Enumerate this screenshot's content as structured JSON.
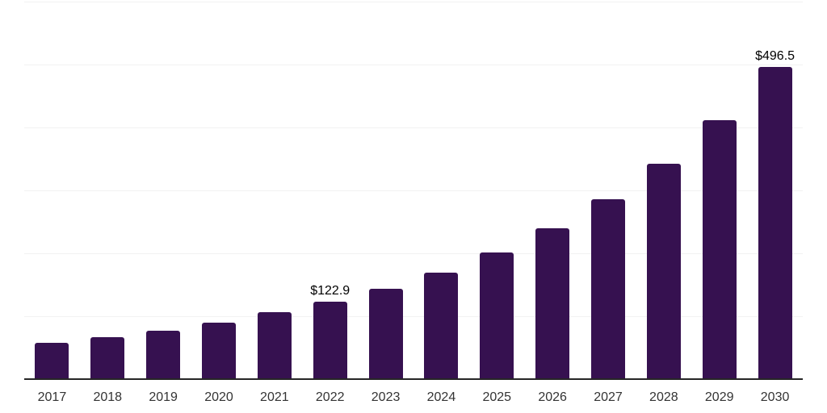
{
  "chart_data": {
    "type": "bar",
    "title": "",
    "categories": [
      "2017",
      "2018",
      "2019",
      "2020",
      "2021",
      "2022",
      "2023",
      "2024",
      "2025",
      "2026",
      "2027",
      "2028",
      "2029",
      "2030"
    ],
    "values": [
      57.5,
      66.2,
      76.4,
      89.6,
      105.8,
      122.9,
      143.7,
      169.3,
      201.8,
      239.7,
      285.8,
      342.6,
      411.7,
      496.5
    ],
    "annotations": [
      {
        "category": "2022",
        "text": "$122.9"
      },
      {
        "category": "2030",
        "text": "$496.5"
      }
    ],
    "xlabel": "",
    "ylabel": "",
    "ylim": [
      0,
      600
    ],
    "gridline_values": [
      100,
      200,
      300,
      400,
      500,
      600
    ],
    "grid": true,
    "legend": false,
    "colors": {
      "bar": "#361150",
      "gridline": "#f2f2f2",
      "axis_line": "#262626",
      "tick_label": "#333333",
      "value_label": "#000000",
      "background": "#ffffff"
    }
  }
}
